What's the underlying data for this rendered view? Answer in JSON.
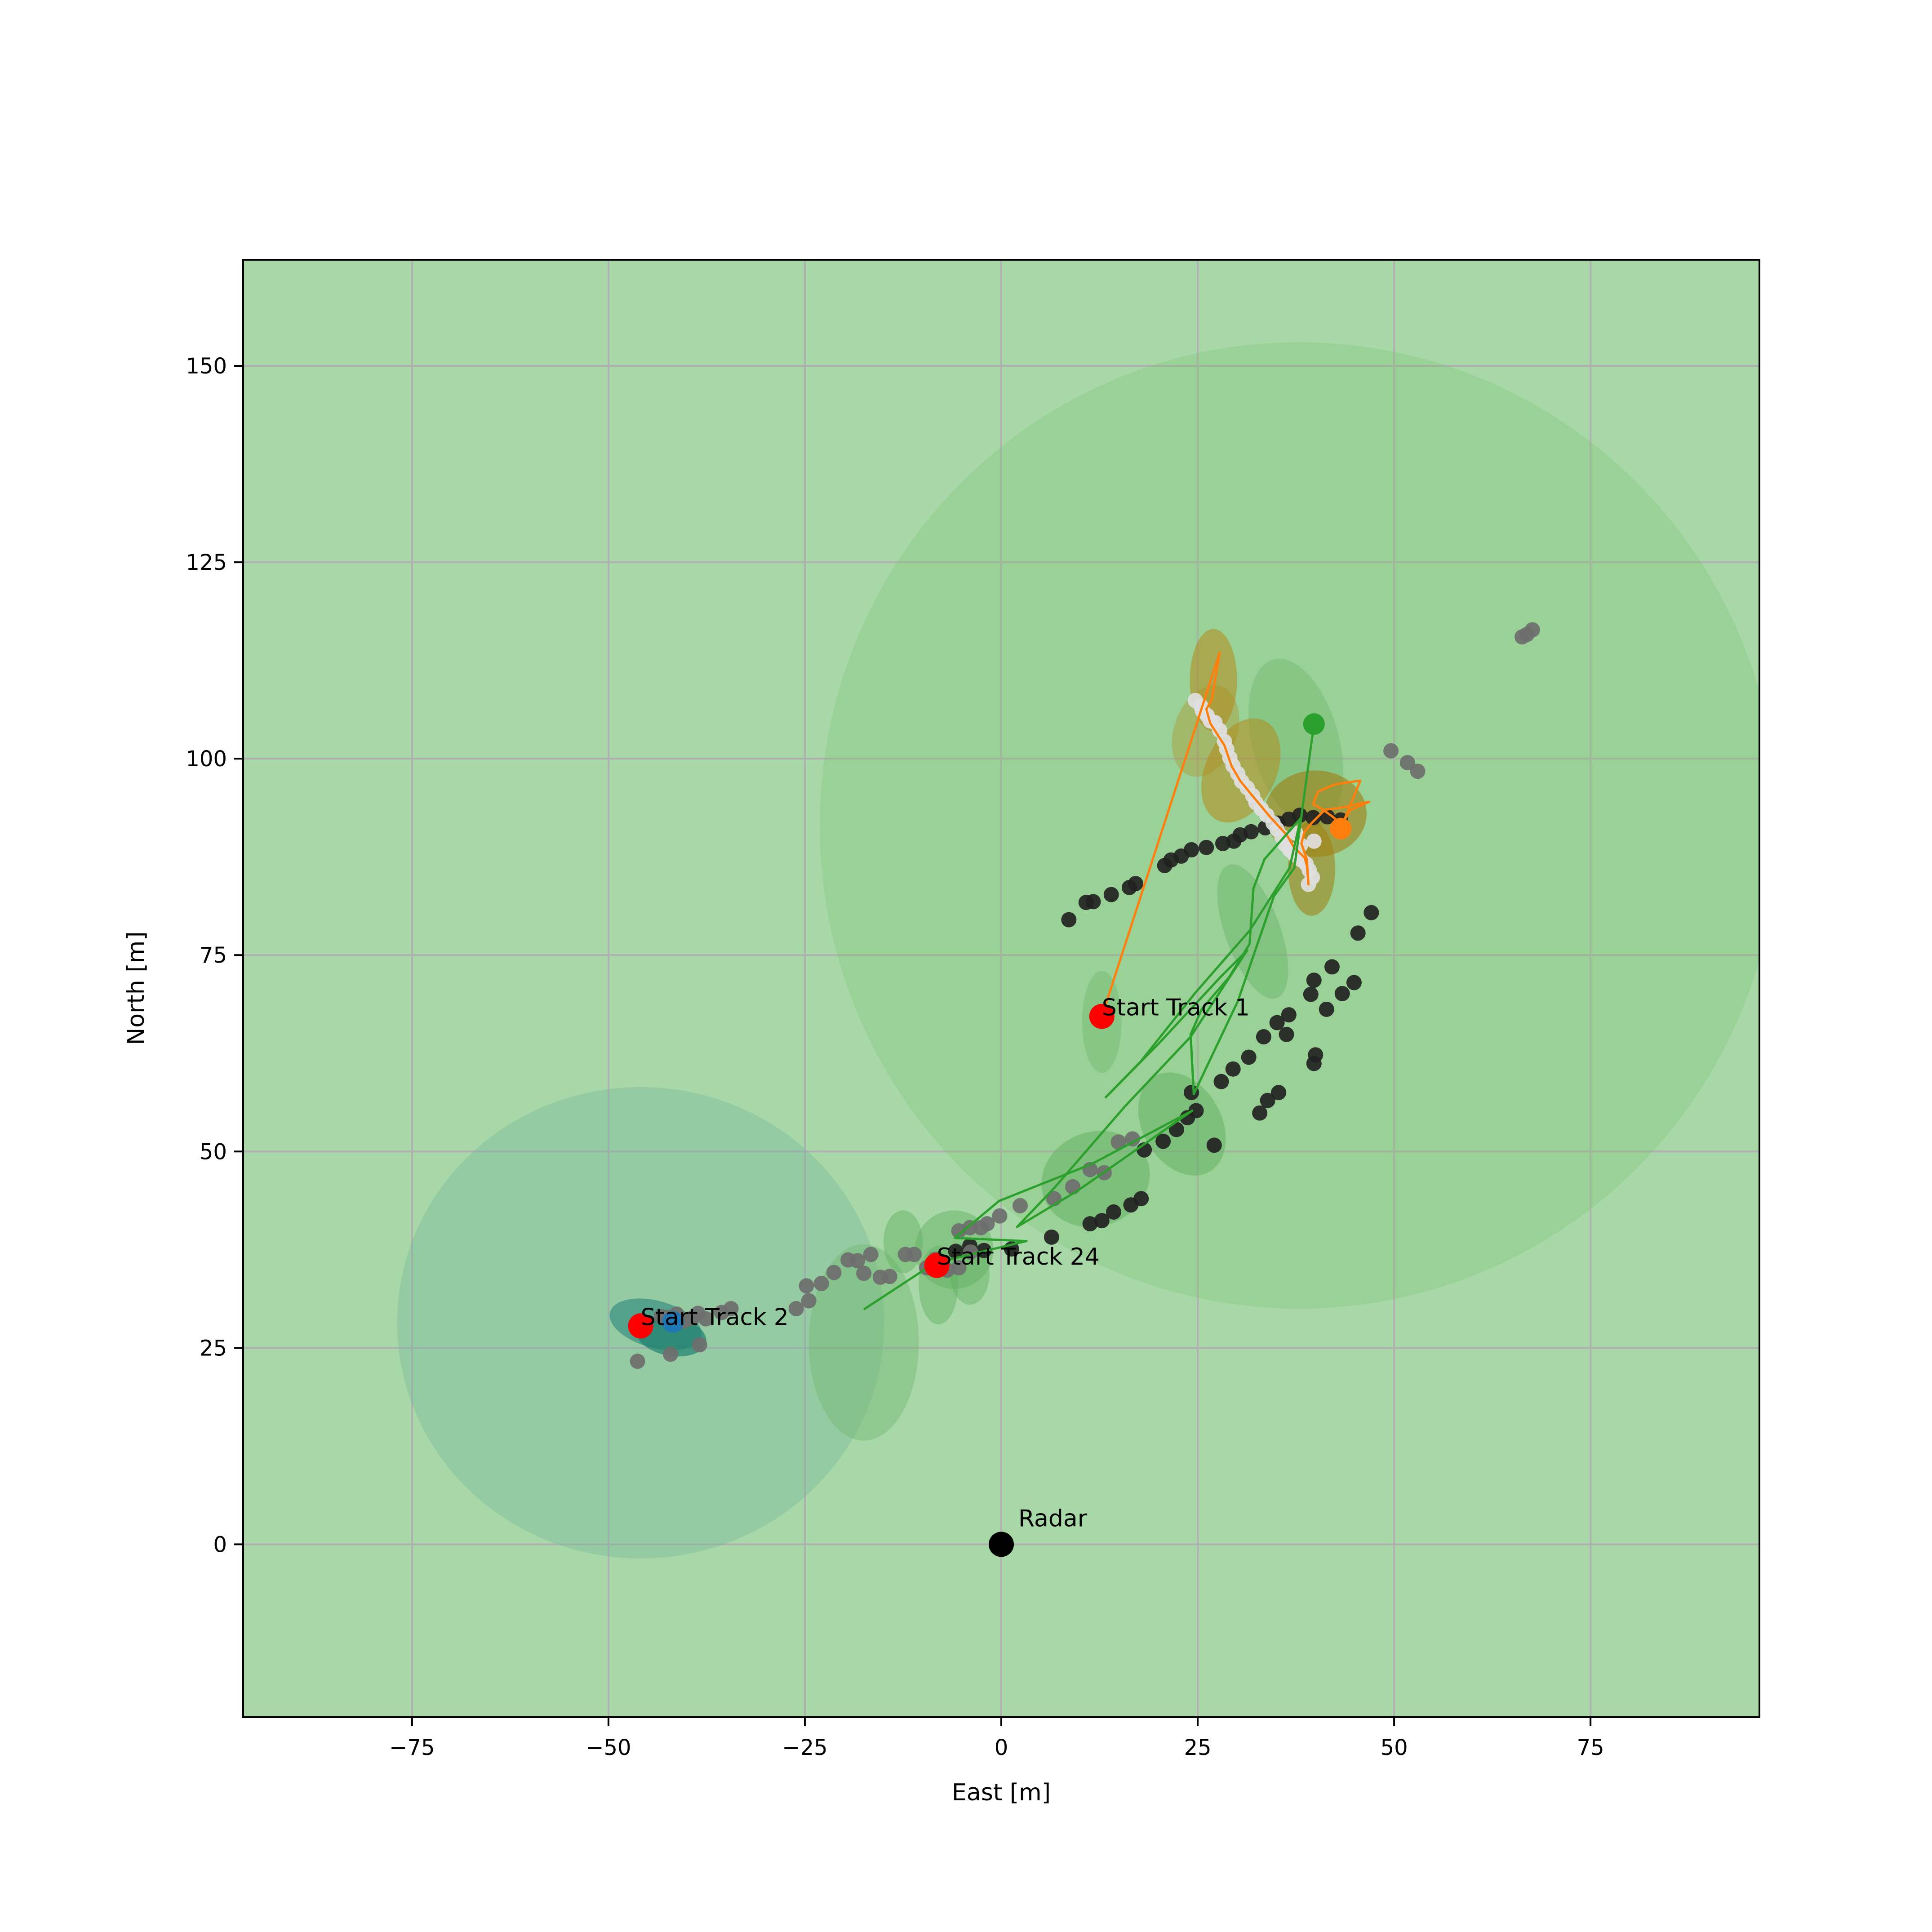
{
  "chart_data": {
    "type": "scatter",
    "title": "",
    "xlabel": "East [m]",
    "ylabel": "North [m]",
    "xlim": [
      -96.5,
      96.5
    ],
    "ylim": [
      -22,
      163.5
    ],
    "xticks": [
      -75,
      -50,
      -25,
      0,
      25,
      50,
      75
    ],
    "yticks": [
      0,
      25,
      50,
      75,
      100,
      125,
      150
    ],
    "xtick_labels": [
      "−75",
      "−50",
      "−25",
      "0",
      "25",
      "50",
      "75"
    ],
    "ytick_labels": [
      "0",
      "25",
      "50",
      "75",
      "100",
      "125",
      "150"
    ],
    "grid": true,
    "background_color": "#a8d8a8",
    "radar": {
      "label": "Radar",
      "x": 0,
      "y": 0,
      "color": "#000000"
    },
    "track_starts": [
      {
        "label": "Start Track 1",
        "x": 12.8,
        "y": 67.2,
        "color": "#ff0000"
      },
      {
        "label": "Start Track 2",
        "x": -45.9,
        "y": 27.8,
        "color": "#ff0000"
      },
      {
        "label": "Start Track 24",
        "x": -8.2,
        "y": 35.5,
        "color": "#ff0000"
      }
    ],
    "uncertainty_regions": [
      {
        "cx": 37.9,
        "cy": 91.5,
        "rx": 61,
        "ry": 61.5,
        "angle": 0,
        "color": "#7cbf6e",
        "opacity": 0.3
      },
      {
        "cx": -45.9,
        "cy": 28.2,
        "rx": 31,
        "ry": 30,
        "angle": 0,
        "color": "#74b49a",
        "opacity": 0.35
      },
      {
        "cx": -17.5,
        "cy": 25.7,
        "rx": 7,
        "ry": 12.5,
        "angle": 0,
        "color": "#72b872",
        "opacity": 0.45
      },
      {
        "cx": 12.8,
        "cy": 66.5,
        "rx": 2.5,
        "ry": 6.5,
        "angle": 0,
        "color": "#72b872",
        "opacity": 0.45
      },
      {
        "cx": 37.5,
        "cy": 102,
        "rx": 5.5,
        "ry": 11,
        "angle": 15,
        "color": "#72b872",
        "opacity": 0.45
      },
      {
        "cx": 32,
        "cy": 78,
        "rx": 3.5,
        "ry": 9,
        "angle": 20,
        "color": "#6cb56c",
        "opacity": 0.5
      },
      {
        "cx": 23,
        "cy": 53.5,
        "rx": 5,
        "ry": 7,
        "angle": 30,
        "color": "#5fb05f",
        "opacity": 0.5
      },
      {
        "cx": 12,
        "cy": 46.5,
        "rx": 7,
        "ry": 6,
        "angle": 20,
        "color": "#5fb05f",
        "opacity": 0.5
      },
      {
        "cx": -6,
        "cy": 37.5,
        "rx": 5,
        "ry": 5,
        "angle": 0,
        "color": "#5fb05f",
        "opacity": 0.45
      },
      {
        "cx": -8,
        "cy": 33,
        "rx": 2.5,
        "ry": 5,
        "angle": 0,
        "color": "#5fb05f",
        "opacity": 0.45
      },
      {
        "cx": -12.5,
        "cy": 38.5,
        "rx": 2.5,
        "ry": 4,
        "angle": 0,
        "color": "#5fb05f",
        "opacity": 0.45
      },
      {
        "cx": -4,
        "cy": 34.5,
        "rx": 2.5,
        "ry": 4,
        "angle": 0,
        "color": "#5fb05f",
        "opacity": 0.45
      },
      {
        "cx": 27,
        "cy": 110,
        "rx": 3,
        "ry": 6.5,
        "angle": 0,
        "color": "#b38a1a",
        "opacity": 0.55
      },
      {
        "cx": 30.5,
        "cy": 98.5,
        "rx": 4.5,
        "ry": 7,
        "angle": -25,
        "color": "#b38a1a",
        "opacity": 0.55
      },
      {
        "cx": 40,
        "cy": 93,
        "rx": 6.5,
        "ry": 5.5,
        "angle": 0,
        "color": "#a07d10",
        "opacity": 0.6
      },
      {
        "cx": 39.5,
        "cy": 86,
        "rx": 3,
        "ry": 6,
        "angle": 0,
        "color": "#a07d10",
        "opacity": 0.55
      },
      {
        "cx": 26,
        "cy": 103.5,
        "rx": 4,
        "ry": 6,
        "angle": -20,
        "color": "#b38a1a",
        "opacity": 0.35
      },
      {
        "cx": -44,
        "cy": 28,
        "rx": 6,
        "ry": 3,
        "angle": -15,
        "color": "#2f8a7e",
        "opacity": 0.65
      },
      {
        "cx": -42,
        "cy": 26.5,
        "rx": 4.5,
        "ry": 2.5,
        "angle": -10,
        "color": "#20806f",
        "opacity": 0.7
      }
    ],
    "series": [
      {
        "kind": "points",
        "color": "#222222",
        "points": [
          [
            8.6,
            79.5
          ],
          [
            10.8,
            81.7
          ],
          [
            11.7,
            81.8
          ],
          [
            14,
            82.7
          ],
          [
            16.3,
            83.6
          ],
          [
            17.1,
            84.1
          ],
          [
            20.8,
            86.4
          ],
          [
            21.6,
            87.1
          ],
          [
            22.9,
            87.6
          ],
          [
            24.2,
            88.4
          ],
          [
            26.1,
            88.7
          ],
          [
            28.2,
            89.2
          ],
          [
            29.6,
            89.5
          ],
          [
            30.4,
            90.3
          ],
          [
            31.8,
            90.7
          ],
          [
            33.6,
            91.2
          ],
          [
            35.2,
            91.8
          ],
          [
            36.6,
            92.3
          ],
          [
            38,
            92.8
          ],
          [
            39.7,
            92.5
          ],
          [
            41.5,
            92.6
          ],
          [
            43.2,
            92.2
          ],
          [
            45.4,
            77.8
          ],
          [
            47.1,
            80.4
          ],
          [
            42.1,
            73.5
          ],
          [
            43.4,
            70.1
          ],
          [
            44.9,
            71.5
          ],
          [
            39.8,
            71.8
          ],
          [
            39.4,
            70
          ],
          [
            41.4,
            68.1
          ],
          [
            36.6,
            67.4
          ],
          [
            36.3,
            64.9
          ],
          [
            35.1,
            66.4
          ],
          [
            33.4,
            64.6
          ],
          [
            31.5,
            62
          ],
          [
            29.5,
            60.5
          ],
          [
            28,
            58.9
          ],
          [
            39.8,
            61.2
          ],
          [
            40,
            62.3
          ],
          [
            35.3,
            57.5
          ],
          [
            33.9,
            56.5
          ],
          [
            32.9,
            54.9
          ],
          [
            24.8,
            55.2
          ],
          [
            24.2,
            57.5
          ],
          [
            23.7,
            54.3
          ],
          [
            22.3,
            52.8
          ],
          [
            20.6,
            51.3
          ],
          [
            18.2,
            50.2
          ],
          [
            27.1,
            50.8
          ],
          [
            17.8,
            44
          ],
          [
            16.5,
            43.2
          ],
          [
            14.3,
            42.3
          ],
          [
            12.8,
            41.2
          ],
          [
            11.3,
            40.8
          ],
          [
            6.4,
            39.1
          ],
          [
            1.3,
            37.6
          ],
          [
            -2.2,
            37.4
          ],
          [
            -4,
            38
          ],
          [
            -5.8,
            37.3
          ]
        ]
      },
      {
        "kind": "points",
        "color": "#6e6e6e",
        "points": [
          [
            -43.3,
            29
          ],
          [
            -42.5,
            28.9
          ],
          [
            -41.3,
            29.3
          ],
          [
            -40.4,
            28.4
          ],
          [
            -39.3,
            28.8
          ],
          [
            -38.6,
            29.4
          ],
          [
            -37.6,
            28.7
          ],
          [
            -35.6,
            29.5
          ],
          [
            -34.4,
            30
          ],
          [
            -26.1,
            30
          ],
          [
            -24.5,
            31
          ],
          [
            -24.8,
            32.9
          ],
          [
            -22.9,
            33.2
          ],
          [
            -21.3,
            34.6
          ],
          [
            -19.5,
            36.2
          ],
          [
            -18.3,
            36.1
          ],
          [
            -17.5,
            34.5
          ],
          [
            -16.6,
            36.9
          ],
          [
            -15.4,
            34
          ],
          [
            -14.2,
            34.1
          ],
          [
            -12.2,
            36.9
          ],
          [
            -11.1,
            36.9
          ],
          [
            -9.5,
            35.2
          ],
          [
            -8.4,
            36.3
          ],
          [
            -6.9,
            34.9
          ],
          [
            -5.4,
            35.2
          ],
          [
            -3.9,
            37.2
          ],
          [
            -5.4,
            39.9
          ],
          [
            -4,
            40.3
          ],
          [
            -2.6,
            40.3
          ],
          [
            -1.8,
            40.8
          ],
          [
            -0.2,
            41.8
          ],
          [
            2.4,
            43.1
          ],
          [
            6.7,
            44
          ],
          [
            9.1,
            45.5
          ],
          [
            11.3,
            47.7
          ],
          [
            13.1,
            47.3
          ],
          [
            14.9,
            51.2
          ],
          [
            16.7,
            51.6
          ],
          [
            -46.3,
            23.3
          ],
          [
            -42.1,
            24.2
          ],
          [
            -38.4,
            25.4
          ],
          [
            49.6,
            101
          ],
          [
            51.7,
            99.5
          ],
          [
            53,
            98.4
          ],
          [
            66.9,
            115.8
          ],
          [
            67.6,
            116.4
          ],
          [
            66.3,
            115.5
          ]
        ]
      },
      {
        "kind": "points",
        "color": "#e0e0e0",
        "points": [
          [
            24.7,
            107.4
          ],
          [
            25.4,
            106.7
          ],
          [
            25.6,
            106.1
          ],
          [
            26.2,
            105.5
          ],
          [
            26.6,
            104.8
          ],
          [
            27.2,
            104.6
          ],
          [
            27.8,
            103.6
          ],
          [
            28.4,
            102.2
          ],
          [
            28.7,
            101.2
          ],
          [
            29.1,
            100.1
          ],
          [
            29.5,
            99.1
          ],
          [
            30.1,
            98.1
          ],
          [
            30.6,
            97.1
          ],
          [
            31.3,
            96.3
          ],
          [
            32,
            95.3
          ],
          [
            32.4,
            94.4
          ],
          [
            33.1,
            93.6
          ],
          [
            33.8,
            92.8
          ],
          [
            34.6,
            91.8
          ],
          [
            35.1,
            91
          ],
          [
            35.7,
            90.1
          ],
          [
            36.1,
            89.1
          ],
          [
            36.7,
            88.4
          ],
          [
            37.3,
            87.8
          ],
          [
            38.2,
            87.1
          ],
          [
            38.8,
            86.6
          ],
          [
            39.2,
            85.8
          ],
          [
            39.6,
            84.9
          ],
          [
            39.1,
            84
          ],
          [
            38.1,
            89
          ],
          [
            37.5,
            90.5
          ],
          [
            39.8,
            89.5
          ]
        ]
      },
      {
        "kind": "line",
        "color": "#ff7f0e",
        "width": 5,
        "points": [
          [
            12.8,
            67.2
          ],
          [
            27.8,
            113.5
          ],
          [
            26.8,
            107.5
          ],
          [
            26.1,
            106.3
          ],
          [
            26.6,
            104.5
          ],
          [
            28.4,
            101.7
          ],
          [
            29.3,
            99.1
          ],
          [
            30.4,
            97.2
          ],
          [
            31.7,
            95.6
          ],
          [
            33.2,
            93.8
          ],
          [
            34.2,
            92.6
          ],
          [
            35.4,
            91.3
          ],
          [
            36.4,
            90.2
          ],
          [
            37.2,
            88.8
          ],
          [
            38.6,
            87.4
          ],
          [
            38.9,
            86.4
          ],
          [
            39.1,
            84
          ],
          [
            38.9,
            87.2
          ],
          [
            38.2,
            89.2
          ],
          [
            38.6,
            90.7
          ],
          [
            39.5,
            91.8
          ],
          [
            40.4,
            92.7
          ],
          [
            41.2,
            93.5
          ],
          [
            42.8,
            93.7
          ],
          [
            44.1,
            93.9
          ],
          [
            45.6,
            94.3
          ],
          [
            46.8,
            94.5
          ],
          [
            44.5,
            93.5
          ],
          [
            43.3,
            91.6
          ],
          [
            42.2,
            92.6
          ],
          [
            40.8,
            93.6
          ],
          [
            39.7,
            94.2
          ],
          [
            40.3,
            95.8
          ],
          [
            42.4,
            96.7
          ],
          [
            44.2,
            97
          ],
          [
            45.7,
            97.2
          ],
          [
            43.2,
            91.1
          ]
        ]
      },
      {
        "kind": "line",
        "color": "#2ca02c",
        "width": 5,
        "points": [
          [
            -17.5,
            29.9
          ],
          [
            -8.5,
            35.8
          ],
          [
            3.2,
            38.6
          ],
          [
            -5.9,
            39
          ],
          [
            -0.3,
            43.7
          ],
          [
            11.5,
            48.4
          ],
          [
            24.3,
            55.2
          ],
          [
            9.7,
            45
          ],
          [
            2,
            40.4
          ],
          [
            6.7,
            45.3
          ],
          [
            15.7,
            55.7
          ],
          [
            24.1,
            64.6
          ],
          [
            31.3,
            75.6
          ],
          [
            27.8,
            72.1
          ],
          [
            20.1,
            63.8
          ],
          [
            13.3,
            56.9
          ],
          [
            17.7,
            61.4
          ],
          [
            24.7,
            70.2
          ],
          [
            31.6,
            78.1
          ],
          [
            36.7,
            86.1
          ],
          [
            38.1,
            92.4
          ],
          [
            33.5,
            87.2
          ],
          [
            32.1,
            83.5
          ],
          [
            31.6,
            76.4
          ],
          [
            29,
            72.2
          ],
          [
            25.5,
            68.1
          ],
          [
            24.1,
            64.9
          ],
          [
            24.5,
            57.3
          ],
          [
            25.4,
            59.2
          ],
          [
            30.1,
            69.1
          ],
          [
            34.7,
            82.5
          ],
          [
            37.3,
            86.1
          ],
          [
            39.8,
            104.4
          ]
        ]
      }
    ],
    "endpoints": [
      {
        "x": 39.8,
        "y": 104.4,
        "color": "#2ca02c"
      },
      {
        "x": 43.2,
        "y": 91.1,
        "color": "#ff7f0e"
      },
      {
        "x": -41.8,
        "y": 28.3,
        "color": "#1f77b4"
      }
    ]
  }
}
